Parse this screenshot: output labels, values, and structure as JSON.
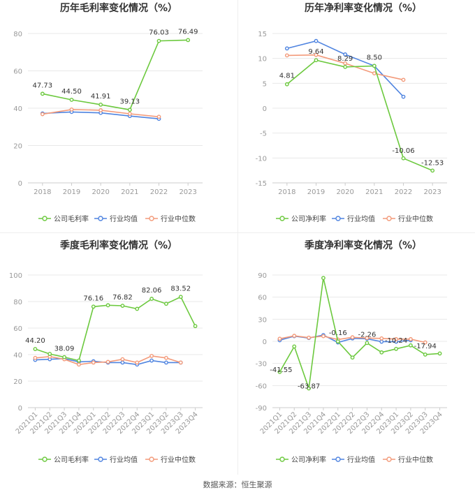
{
  "colors": {
    "company": "#6cc93e",
    "industry_avg": "#4f84e0",
    "industry_median": "#f39a7a",
    "grid": "#e8e8e8",
    "axis_text": "#999999",
    "title": "#333333"
  },
  "source": "数据来源：恒生聚源",
  "chart_data": [
    {
      "id": "annual-gross",
      "type": "line",
      "title": "历年毛利率变化情况（%）",
      "categories": [
        "2018",
        "2019",
        "2020",
        "2021",
        "2022",
        "2023"
      ],
      "ylim": [
        0,
        80
      ],
      "yticks": [
        0,
        20,
        40,
        60,
        80
      ],
      "grid": true,
      "legend_position": "bottom",
      "series": [
        {
          "name": "公司毛利率",
          "key": "company",
          "values": [
            47.73,
            44.5,
            41.91,
            39.13,
            76.03,
            76.49
          ],
          "labels": [
            "47.73",
            "44.50",
            "41.91",
            "39.13",
            "76.03",
            "76.49"
          ]
        },
        {
          "name": "行业均值",
          "key": "industry_avg",
          "values": [
            37.2,
            38.0,
            37.5,
            35.8,
            34.3,
            null
          ]
        },
        {
          "name": "行业中位数",
          "key": "industry_median",
          "values": [
            36.8,
            39.3,
            38.9,
            37.0,
            35.4,
            null
          ]
        }
      ]
    },
    {
      "id": "annual-net",
      "type": "line",
      "title": "历年净利率变化情况（%）",
      "categories": [
        "2018",
        "2019",
        "2020",
        "2021",
        "2022",
        "2023"
      ],
      "ylim": [
        -15,
        15
      ],
      "yticks": [
        -15,
        -10,
        -5,
        0,
        5,
        10,
        15
      ],
      "grid": true,
      "legend_position": "bottom",
      "series": [
        {
          "name": "公司净利率",
          "key": "company",
          "values": [
            4.81,
            9.64,
            8.29,
            8.5,
            -10.06,
            -12.53
          ],
          "labels": [
            "4.81",
            "9.64",
            "8.29",
            "8.50",
            "-10.06",
            "-12.53"
          ]
        },
        {
          "name": "行业均值",
          "key": "industry_avg",
          "values": [
            12.0,
            13.5,
            10.8,
            8.5,
            2.3,
            null
          ]
        },
        {
          "name": "行业中位数",
          "key": "industry_median",
          "values": [
            10.6,
            10.7,
            9.0,
            7.0,
            5.7,
            null
          ]
        }
      ]
    },
    {
      "id": "quarterly-gross",
      "type": "line",
      "title": "季度毛利率变化情况（%）",
      "categories": [
        "2021Q1",
        "2021Q2",
        "2021Q3",
        "2021Q4",
        "2022Q1",
        "2022Q2",
        "2022Q3",
        "2022Q4",
        "2023Q1",
        "2023Q2",
        "2023Q3",
        "2023Q4"
      ],
      "ylim": [
        0,
        100
      ],
      "yticks": [
        0,
        20,
        40,
        60,
        80,
        100
      ],
      "grid": true,
      "legend_position": "bottom",
      "series": [
        {
          "name": "公司毛利率",
          "key": "company",
          "values": [
            44.2,
            40.5,
            38.09,
            35.5,
            76.16,
            77.2,
            76.82,
            74.5,
            82.06,
            78.3,
            83.52,
            61.5
          ],
          "labels": [
            "44.20",
            "",
            "38.09",
            "",
            "76.16",
            "",
            "76.82",
            "",
            "82.06",
            "",
            "83.52",
            ""
          ]
        },
        {
          "name": "行业均值",
          "key": "industry_avg",
          "values": [
            36.0,
            36.5,
            37.0,
            34.5,
            35.0,
            34.0,
            34.0,
            32.5,
            35.5,
            34.0,
            34.0,
            null
          ]
        },
        {
          "name": "行业中位数",
          "key": "industry_median",
          "values": [
            37.5,
            38.5,
            36.5,
            32.5,
            34.0,
            34.5,
            36.5,
            34.0,
            39.0,
            37.5,
            34.0,
            null
          ]
        }
      ]
    },
    {
      "id": "quarterly-net",
      "type": "line",
      "title": "季度净利率变化情况（%）",
      "categories": [
        "2021Q1",
        "2021Q2",
        "2021Q3",
        "2021Q4",
        "2022Q1",
        "2022Q2",
        "2022Q3",
        "2022Q4",
        "2023Q1",
        "2023Q2",
        "2023Q3",
        "2023Q4"
      ],
      "ylim": [
        -90,
        90
      ],
      "yticks": [
        -90,
        -60,
        -30,
        0,
        30,
        60,
        90
      ],
      "grid": true,
      "legend_position": "bottom",
      "series": [
        {
          "name": "公司净利率",
          "key": "company",
          "values": [
            -41.55,
            -7.0,
            -63.87,
            86.0,
            -0.16,
            -22.0,
            -2.26,
            -15.0,
            -10.24,
            -5.5,
            -17.94,
            -16.5
          ],
          "labels": [
            "-41.55",
            "",
            "-63.87",
            "",
            "-0.16",
            "",
            "-2.26",
            "",
            "-10.24",
            "",
            "-17.94",
            ""
          ]
        },
        {
          "name": "行业均值",
          "key": "industry_avg",
          "values": [
            1.5,
            7.0,
            4.5,
            8.5,
            -1.5,
            4.0,
            3.5,
            -0.5,
            -0.5,
            1.5,
            null,
            null
          ]
        },
        {
          "name": "行业中位数",
          "key": "industry_median",
          "values": [
            3.5,
            7.5,
            5.0,
            7.0,
            2.5,
            5.5,
            4.5,
            4.0,
            3.0,
            3.0,
            -1.5,
            null
          ]
        }
      ]
    }
  ]
}
